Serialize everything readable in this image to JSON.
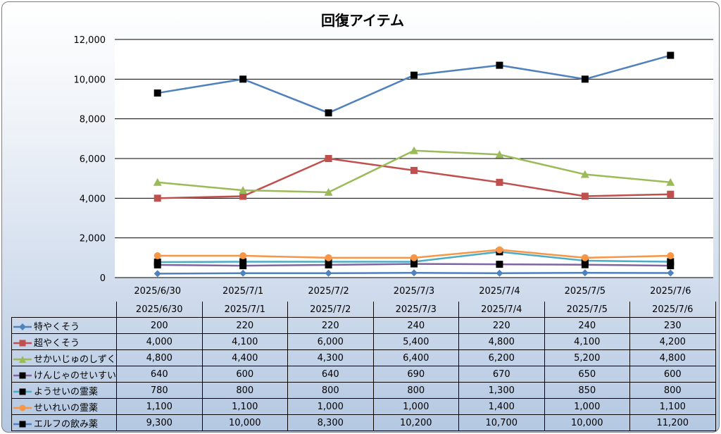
{
  "chart_data": {
    "type": "line",
    "title": "回復アイテム",
    "categories": [
      "2025/6/30",
      "2025/7/1",
      "2025/7/2",
      "2025/7/3",
      "2025/7/4",
      "2025/7/5",
      "2025/7/6"
    ],
    "ylim": [
      0,
      12000
    ],
    "yticks": [
      "0",
      "2,000",
      "4,000",
      "6,000",
      "8,000",
      "10,000",
      "12,000"
    ],
    "grid": true,
    "legend": "data-table",
    "series": [
      {
        "name": "特やくそう",
        "color": "#4f81bd",
        "marker": "diamond",
        "values": [
          200,
          220,
          220,
          240,
          220,
          240,
          230
        ],
        "labels": [
          "200",
          "220",
          "220",
          "240",
          "220",
          "240",
          "230"
        ]
      },
      {
        "name": "超やくそう",
        "color": "#c0504d",
        "marker": "square",
        "values": [
          4000,
          4100,
          6000,
          5400,
          4800,
          4100,
          4200
        ],
        "labels": [
          "4,000",
          "4,100",
          "6,000",
          "5,400",
          "4,800",
          "4,100",
          "4,200"
        ]
      },
      {
        "name": "せかいじゅのしずく",
        "color": "#9bbb59",
        "marker": "triangle",
        "values": [
          4800,
          4400,
          4300,
          6400,
          6200,
          5200,
          4800
        ],
        "labels": [
          "4,800",
          "4,400",
          "4,300",
          "6,400",
          "6,200",
          "5,200",
          "4,800"
        ]
      },
      {
        "name": "けんじゃのせいすい",
        "color": "#8064a2",
        "marker": "black-square",
        "values": [
          640,
          600,
          640,
          690,
          670,
          650,
          600
        ],
        "labels": [
          "640",
          "600",
          "640",
          "690",
          "670",
          "650",
          "600"
        ]
      },
      {
        "name": "ようせいの霊薬",
        "color": "#4bacc6",
        "marker": "black-square",
        "values": [
          780,
          800,
          800,
          800,
          1300,
          850,
          800
        ],
        "labels": [
          "780",
          "800",
          "800",
          "800",
          "1,300",
          "850",
          "800"
        ]
      },
      {
        "name": "せいれいの霊薬",
        "color": "#f79646",
        "marker": "circle",
        "values": [
          1100,
          1100,
          1000,
          1000,
          1400,
          1000,
          1100
        ],
        "labels": [
          "1,100",
          "1,100",
          "1,000",
          "1,000",
          "1,400",
          "1,000",
          "1,100"
        ]
      },
      {
        "name": "エルフの飲み薬",
        "color": "#4f81bd",
        "marker": "black-square",
        "values": [
          9300,
          10000,
          8300,
          10200,
          10700,
          10000,
          11200
        ],
        "labels": [
          "9,300",
          "10,000",
          "8,300",
          "10,200",
          "10,700",
          "10,000",
          "11,200"
        ]
      }
    ]
  }
}
